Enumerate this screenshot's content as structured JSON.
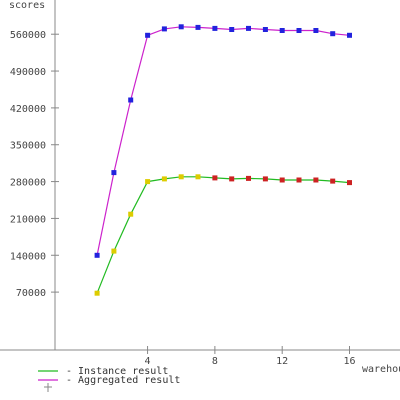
{
  "chart_data": {
    "type": "line",
    "ylabel": "scores",
    "xlabel": "warehouses",
    "xlim": [
      -1.5,
      19
    ],
    "ylim": [
      -40000,
      625000
    ],
    "x_ticks": [
      4,
      8,
      12,
      16
    ],
    "y_ticks": [
      70000,
      140000,
      210000,
      280000,
      350000,
      420000,
      490000,
      560000
    ],
    "grid": false,
    "legend_position": "bottom-left",
    "series": [
      {
        "name": "Instance result",
        "color": "#22bb22",
        "marker_color": "#ddcc00",
        "marker_color_late": "#cc2222",
        "x": [
          1,
          2,
          3,
          4,
          5,
          6,
          7,
          8,
          9,
          10,
          11,
          12,
          13,
          14,
          15,
          16
        ],
        "y": [
          68000,
          148000,
          218000,
          280000,
          285000,
          289000,
          289000,
          287000,
          285000,
          286000,
          285000,
          283000,
          283000,
          283000,
          281000,
          278000
        ]
      },
      {
        "name": "Aggregated result",
        "color": "#cc22cc",
        "marker_color": "#2222dd",
        "x": [
          1,
          2,
          3,
          4,
          5,
          6,
          7,
          8,
          9,
          10,
          11,
          12,
          13,
          14,
          15,
          16
        ],
        "y": [
          140000,
          297000,
          435000,
          558000,
          570000,
          574000,
          573000,
          571000,
          569000,
          571000,
          569000,
          567000,
          567000,
          567000,
          561000,
          558000
        ]
      }
    ]
  }
}
